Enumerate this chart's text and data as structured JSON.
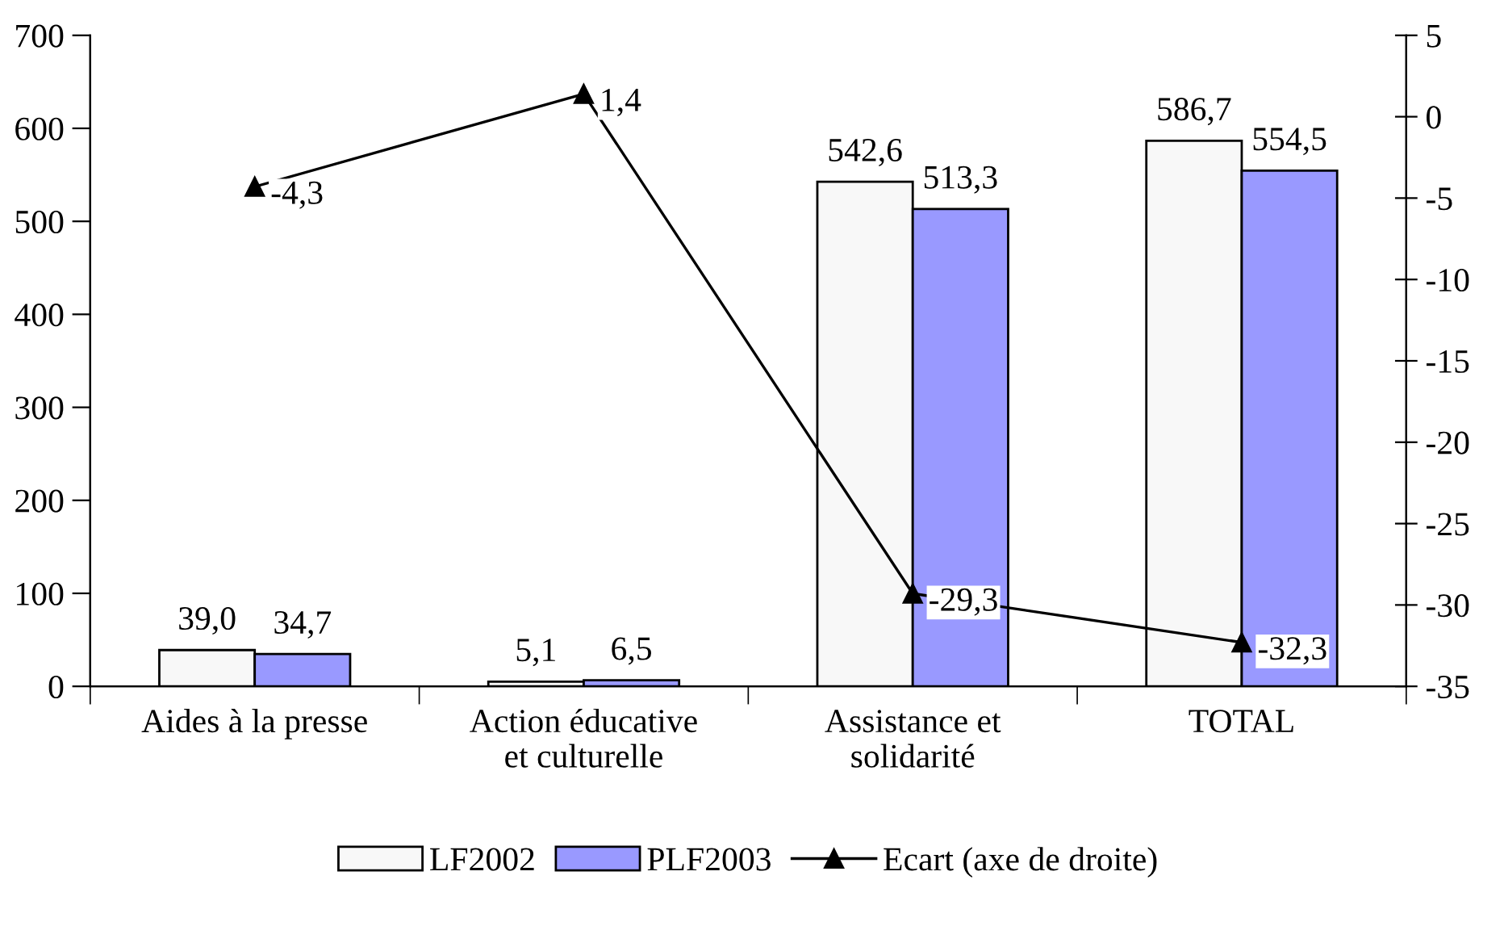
{
  "chart_data": {
    "type": "bar",
    "categories": [
      "Aides à la presse",
      "Action éducative\net culturelle",
      "Assistance et\nsolidarité",
      "TOTAL"
    ],
    "series": [
      {
        "name": "LF2002",
        "color": "#f8f8f8",
        "values": [
          39.0,
          5.1,
          542.6,
          586.7
        ],
        "value_labels": [
          "39,0",
          "5,1",
          "542,6",
          "586,7"
        ]
      },
      {
        "name": "PLF2003",
        "color": "#9999ff",
        "values": [
          34.7,
          6.5,
          513.3,
          554.5
        ],
        "value_labels": [
          "34,7",
          "6,5",
          "513,3",
          "554,5"
        ]
      },
      {
        "name": "Ecart (axe de droite)",
        "type": "line",
        "axis": "y2",
        "color": "#000000",
        "marker": "triangle",
        "values": [
          -4.3,
          1.4,
          -29.3,
          -32.3
        ],
        "value_labels": [
          "-4,3",
          "1,4",
          "-29,3",
          "-32,3"
        ]
      }
    ],
    "ylim": [
      0,
      700
    ],
    "yticks": [
      0,
      100,
      200,
      300,
      400,
      500,
      600,
      700
    ],
    "y2lim": [
      -35,
      5
    ],
    "y2ticks": [
      -35,
      -30,
      -25,
      -20,
      -15,
      -10,
      -5,
      0,
      5
    ],
    "grid": false,
    "legend": "bottom"
  }
}
